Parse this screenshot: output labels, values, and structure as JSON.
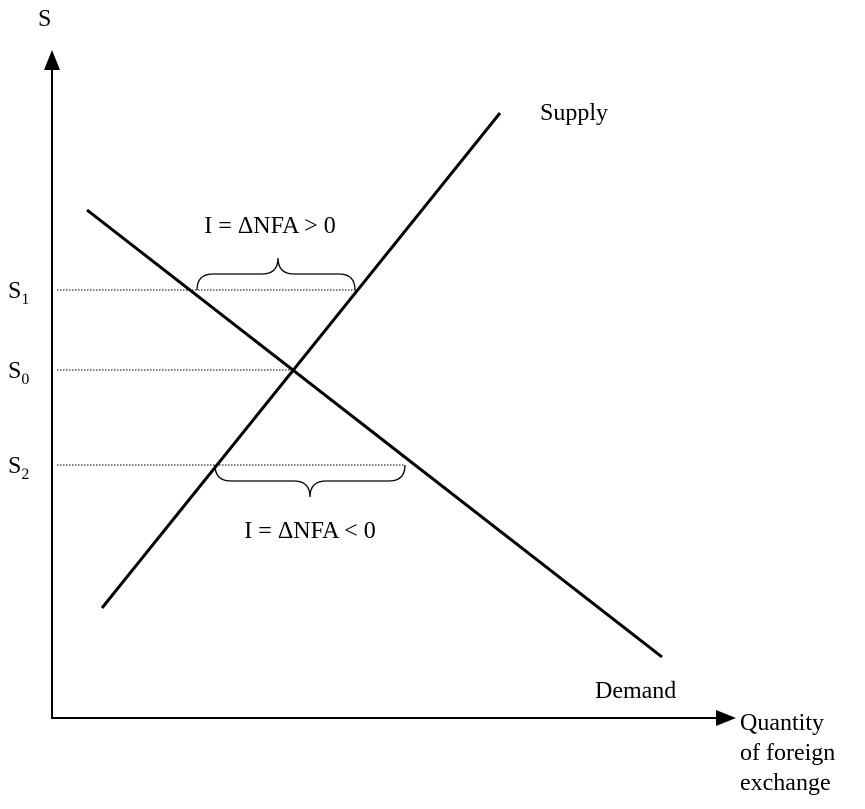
{
  "axes": {
    "y_label": "S",
    "x_label": [
      "Quantity",
      "of foreign",
      "exchange"
    ]
  },
  "curves": {
    "supply": "Supply",
    "demand": "Demand"
  },
  "levels": [
    {
      "base": "S",
      "sub": "1"
    },
    {
      "base": "S",
      "sub": "0"
    },
    {
      "base": "S",
      "sub": "2"
    }
  ],
  "annotations": [
    "I = ΔNFA > 0",
    "I = ΔNFA < 0"
  ]
}
